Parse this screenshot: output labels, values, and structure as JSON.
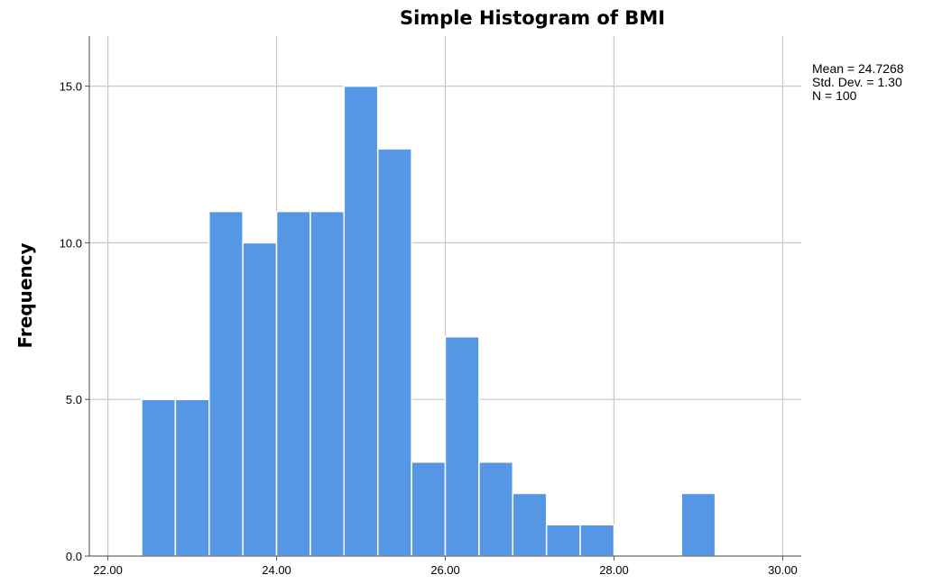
{
  "chart_data": {
    "type": "bar",
    "title": "Simple Histogram of BMI",
    "xlabel": "",
    "ylabel": "Frequency",
    "xlim": [
      21.78,
      30.22
    ],
    "ylim": [
      0,
      16.6
    ],
    "x_ticks": [
      "22.00",
      "24.00",
      "26.00",
      "28.00",
      "30.00"
    ],
    "y_ticks": [
      "0.0",
      "5.0",
      "10.0",
      "15.0"
    ],
    "grid": true,
    "bin_width": 0.4,
    "bins": [
      {
        "start": 22.4,
        "count": 5
      },
      {
        "start": 22.8,
        "count": 5
      },
      {
        "start": 23.2,
        "count": 11
      },
      {
        "start": 23.6,
        "count": 10
      },
      {
        "start": 24.0,
        "count": 11
      },
      {
        "start": 24.4,
        "count": 11
      },
      {
        "start": 24.8,
        "count": 15
      },
      {
        "start": 25.2,
        "count": 13
      },
      {
        "start": 25.6,
        "count": 3
      },
      {
        "start": 26.0,
        "count": 7
      },
      {
        "start": 26.4,
        "count": 3
      },
      {
        "start": 26.8,
        "count": 2
      },
      {
        "start": 27.2,
        "count": 1
      },
      {
        "start": 27.6,
        "count": 1
      },
      {
        "start": 28.8,
        "count": 2
      }
    ],
    "bar_color": "#5597E4",
    "stats": {
      "mean": "Mean = 24.7268",
      "std_dev": "Std. Dev. = 1.30",
      "n": "N = 100"
    }
  }
}
